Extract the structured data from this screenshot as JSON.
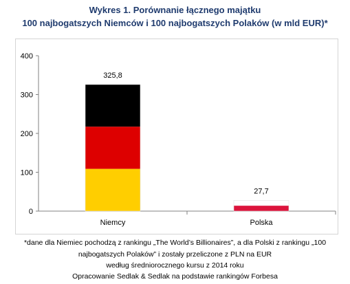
{
  "title_line1": "Wykres 1. Porównanie łącznego majątku",
  "title_line2": "100 najbogatszych Niemców i 100 najbogatszych Polaków (w mld EUR)*",
  "notes": {
    "line1": "*dane dla Niemiec pochodzą z rankingu „The World’s Billionaires”, a dla Polski z rankingu „100",
    "line2": "najbogatszych Polaków” i zostały przeliczone z PLN na EUR",
    "line3": "według średniorocznego kursu z 2014 roku",
    "line4": "Opracowanie Sedlak & Sedlak na podstawie rankingów Forbesa"
  },
  "chart_data": {
    "type": "bar",
    "categories": [
      "Niemcy",
      "Polska"
    ],
    "values": [
      325.8,
      27.7
    ],
    "value_labels": [
      "325,8",
      "27,7"
    ],
    "yticks": [
      0,
      100,
      200,
      300,
      400
    ],
    "ylim": [
      0,
      400
    ],
    "grid": false,
    "legend": "none",
    "bar_fills": [
      [
        "#000000",
        "#dd0000",
        "#ffce00"
      ],
      [
        "#ffffff",
        "#dc143c"
      ]
    ]
  }
}
